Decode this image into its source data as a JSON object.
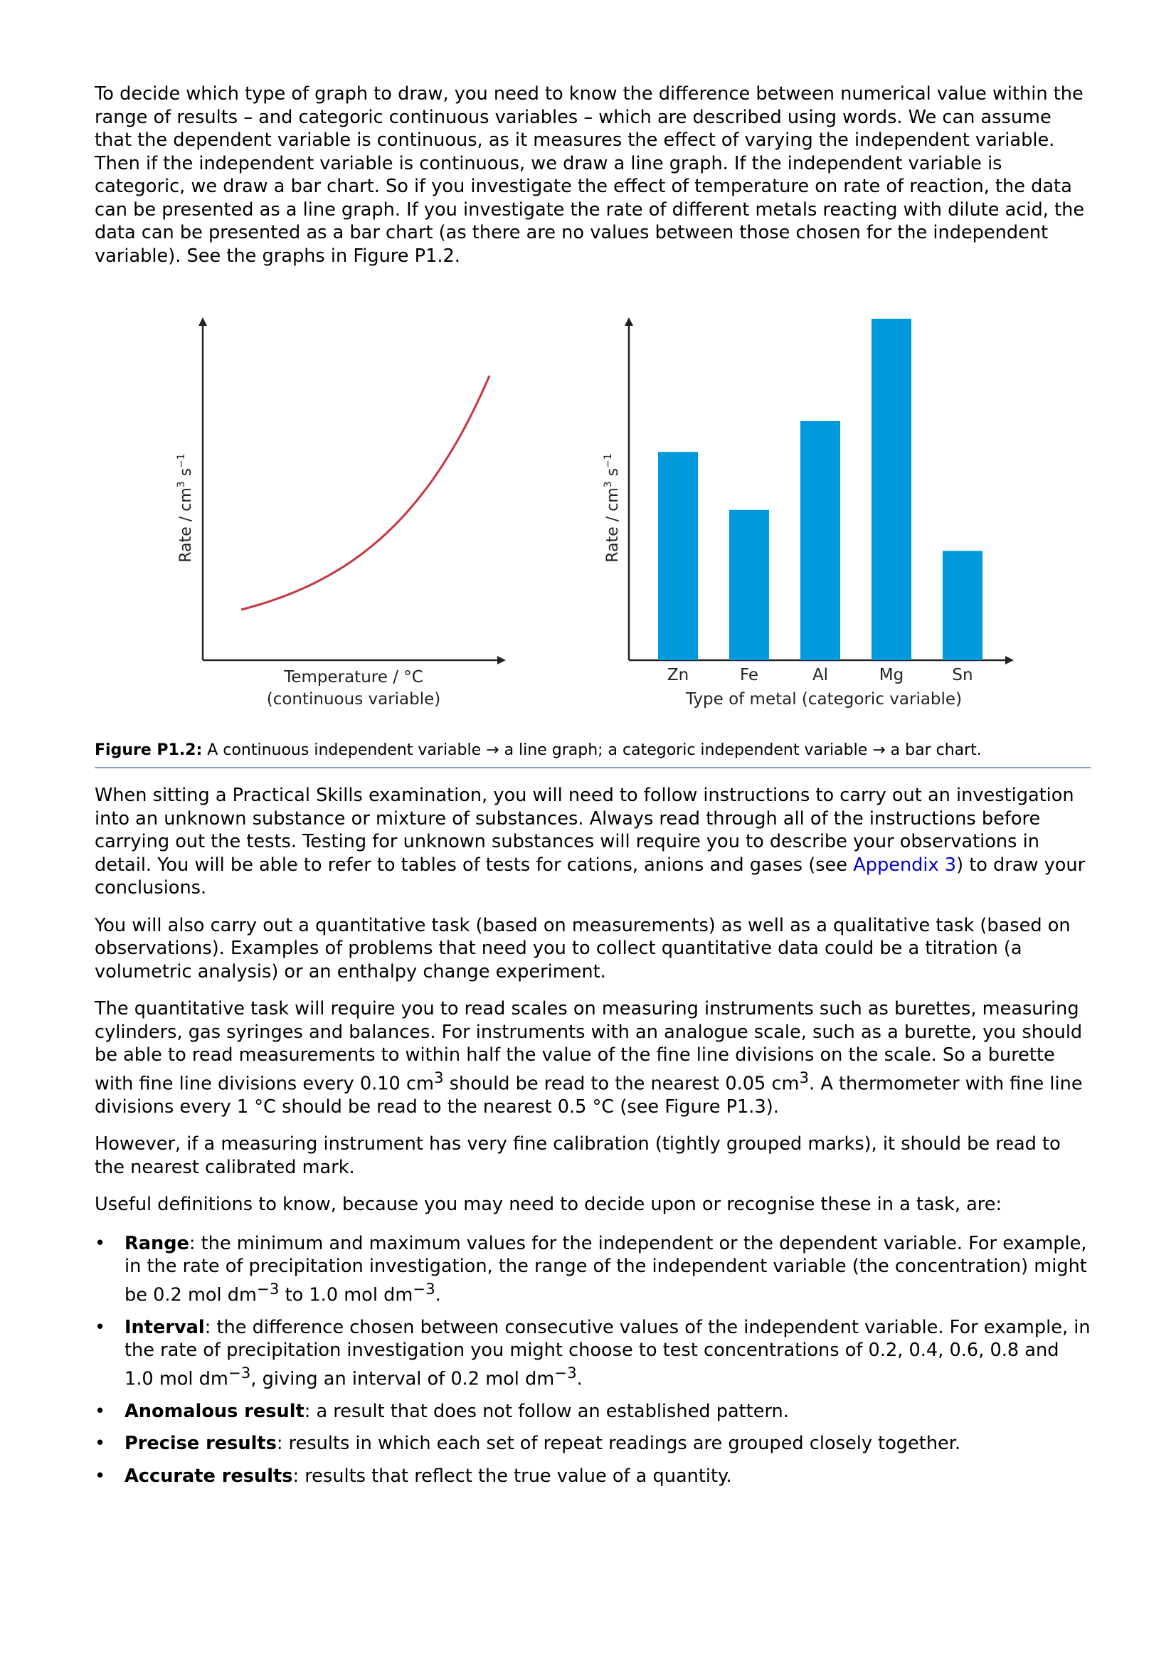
{
  "intro": {
    "paragraph": "To decide which type of graph to draw, you need to know the difference between numerical value within the range of results – and categoric continuous variables – which are described using words. We can assume that the dependent variable is continuous, as it measures the effect of varying the independent variable. Then if the independent variable is continuous, we draw a line graph. If the independent variable is categoric, we draw a bar chart. So if you investigate the effect of temperature on rate of reaction, the data can be presented as a line graph. If you investigate the rate of different metals reacting with dilute acid, the data can be presented as a bar chart (as there are no values between those chosen for the independent variable). See the graphs in Figure P1.2."
  },
  "chart_data": [
    {
      "type": "line",
      "ylabel_main": "Rate / cm",
      "ylabel_sup1": "3",
      "ylabel_mid": " s",
      "ylabel_sup2": "−1",
      "xlabel": "Temperature / °C",
      "xlabel_sub": "(continuous variable)",
      "curve": "exponential increase",
      "color": "#c8363c"
    },
    {
      "type": "bar",
      "ylabel_main": "Rate / cm",
      "ylabel_sup1": "3",
      "ylabel_mid": " s",
      "ylabel_sup2": "−1",
      "categories": [
        "Zn",
        "Fe",
        "Al",
        "Mg",
        "Sn"
      ],
      "values": [
        61,
        44,
        70,
        100,
        32
      ],
      "xlabel": "Type of metal (categoric variable)",
      "color": "#0099dd"
    }
  ],
  "figure": {
    "caption_label": "Figure P1.2:",
    "caption_text": " A continuous independent variable → a line graph; a categoric independent variable → a bar chart."
  },
  "body": {
    "p1_before": "When sitting a Practical Skills examination, you will need to follow instructions to carry out an investigation into an unknown substance or mixture of substances. Always read through all of the instructions before carrying out the tests. Testing for unknown substances will require you to describe your observations in detail. You will be able to refer to tables of tests for cations, anions and gases (see ",
    "p1_link": "Appendix 3",
    "p1_after": ") to draw your conclusions.",
    "p2": "You will also carry out a quantitative task (based on measurements) as well as a qualitative task (based on observations). Examples of problems that need you to collect quantitative data could be a titration (a volumetric analysis) or an enthalpy change experiment.",
    "p3_a": "The quantitative task will require you to read scales on measuring instruments such as burettes, measuring cylinders, gas syringes and balances. For instruments with an analogue scale, such as a burette, you should be able to read measurements to within half the value of the fine line divisions on the scale. So a burette with fine line divisions every 0.10 cm",
    "p3_sup1": "3",
    "p3_b": " should be read to the nearest 0.05 cm",
    "p3_sup2": "3",
    "p3_c": ". A thermometer with fine line divisions every 1 °C should be read to the nearest 0.5 °C (see Figure P1.3).",
    "p4": "However, if a measuring instrument has very fine calibration (tightly grouped marks), it should be read to the nearest calibrated mark.",
    "p5": "Useful definitions to know, because you may need to decide upon or recognise these in a task, are:"
  },
  "definitions": {
    "range_term": "Range",
    "range_a": ": the minimum and maximum values for the independent or the dependent variable. For example, in the rate of precipitation investigation, the range of the independent variable (the concentration) might be 0.2 mol dm",
    "range_sup1": "−3",
    "range_b": " to 1.0 mol dm",
    "range_sup2": "−3",
    "range_c": ".",
    "interval_term": "Interval",
    "interval_a": ": the difference chosen between consecutive values of the independent variable. For example, in the rate of precipitation investigation you might choose to test concentrations of 0.2, 0.4, 0.6, 0.8 and 1.0 mol dm",
    "interval_sup1": "−3",
    "interval_b": ", giving an interval of 0.2 mol dm",
    "interval_sup2": "−3",
    "interval_c": ".",
    "anomalous_term": "Anomalous result",
    "anomalous_text": ": a result that does not follow an established pattern.",
    "precise_term": "Precise results",
    "precise_text": ": results in which each set of repeat readings are grouped closely together.",
    "accurate_term": "Accurate results",
    "accurate_text": ": results that reflect the true value of a quantity."
  }
}
